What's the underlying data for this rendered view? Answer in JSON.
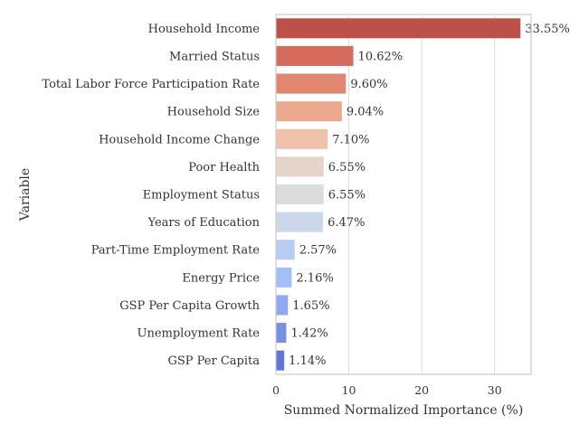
{
  "chart_data": {
    "type": "bar",
    "orientation": "horizontal",
    "xlabel": "Summed Normalized Importance (%)",
    "ylabel": "Variable",
    "xlim": [
      0,
      35
    ],
    "xticks": [
      "0",
      "10",
      "20",
      "30"
    ],
    "grid": "vertical",
    "categories": [
      "Household Income",
      "Married Status",
      "Total Labor Force Participation Rate",
      "Household Size",
      "Household Income Change",
      "Poor Health",
      "Employment Status",
      "Years of Education",
      "Part-Time Employment Rate",
      "Energy Price",
      "GSP Per Capita Growth",
      "Unemployment Rate",
      "GSP Per Capita"
    ],
    "values": [
      33.55,
      10.62,
      9.6,
      9.04,
      7.1,
      6.55,
      6.55,
      6.47,
      2.57,
      2.16,
      1.65,
      1.42,
      1.14
    ],
    "value_labels": [
      "33.55%",
      "10.62%",
      "9.60%",
      "9.04%",
      "7.10%",
      "6.55%",
      "6.55%",
      "6.47%",
      "2.57%",
      "2.16%",
      "1.65%",
      "1.42%",
      "1.14%"
    ],
    "colors": [
      "#bd514a",
      "#d66c5d",
      "#e2876f",
      "#ebaa8e",
      "#f0c2ac",
      "#e6d3c9",
      "#dcdcdc",
      "#ccd8ea",
      "#b7cdf4",
      "#a3bff7",
      "#8fa9f1",
      "#7890e1",
      "#6277d3"
    ]
  }
}
